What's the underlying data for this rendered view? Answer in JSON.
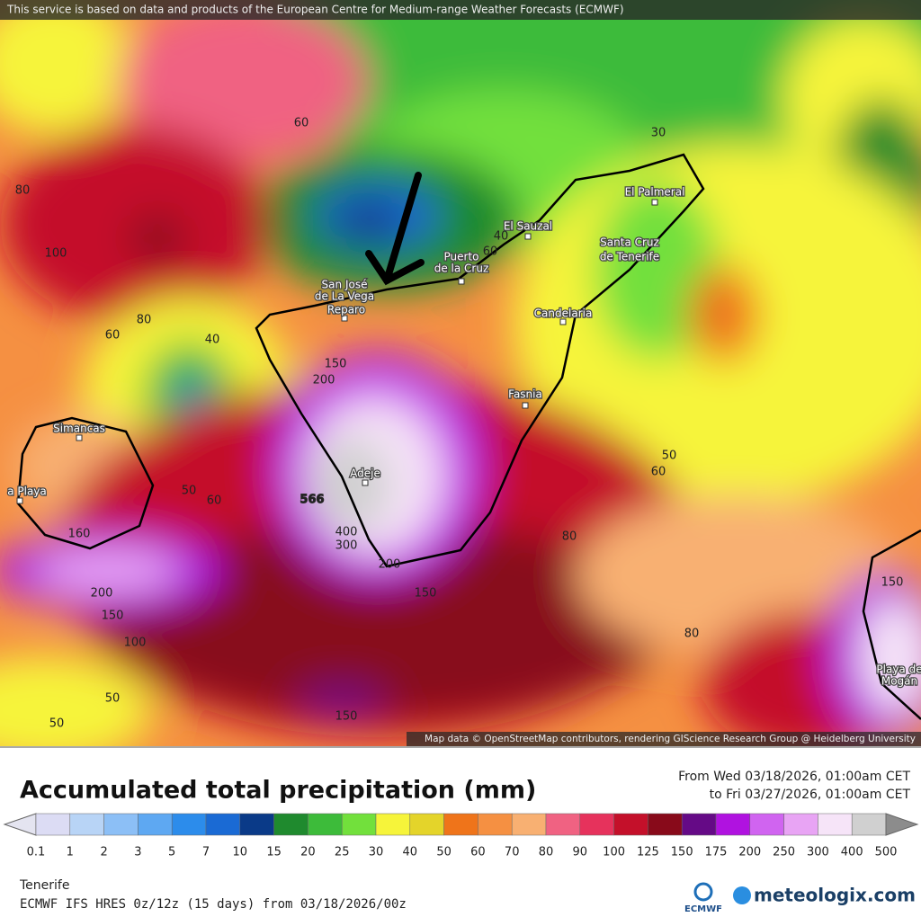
{
  "header": {
    "notice": "This service is based on data and products of the European Centre for Medium-range Weather Forecasts (ECMWF)"
  },
  "map": {
    "places": [
      {
        "lines": [
          "El Palmeral"
        ]
      },
      {
        "lines": [
          "El Sauzal"
        ]
      },
      {
        "lines": [
          "Santa Cruz",
          "de Tenerife"
        ]
      },
      {
        "lines": [
          "Puerto",
          "de la Cruz"
        ]
      },
      {
        "lines": [
          "San José",
          "de La Vega"
        ]
      },
      {
        "lines": [
          "Reparo"
        ]
      },
      {
        "lines": [
          "Candelaria"
        ]
      },
      {
        "lines": [
          "Fasnia"
        ]
      },
      {
        "lines": [
          "Adeje"
        ]
      },
      {
        "lines": [
          "Simancas"
        ]
      },
      {
        "lines": [
          "a Playa"
        ]
      },
      {
        "lines": [
          "Playa de",
          "Mogán"
        ]
      }
    ],
    "contour_labels": [
      "60",
      "30",
      "80",
      "100",
      "80",
      "60",
      "40",
      "40",
      "60",
      "150",
      "200",
      "50",
      "60",
      "566",
      "400",
      "300",
      "200",
      "150",
      "160",
      "200",
      "150",
      "100",
      "50",
      "50",
      "150",
      "80",
      "50",
      "60",
      "80",
      "150"
    ],
    "attribution": "Map data © OpenStreetMap contributors, rendering GIScience Research Group @ Heidelberg University"
  },
  "legend": {
    "title": "Accumulated total precipitation (mm)",
    "period": [
      "From Wed 03/18/2026, 01:00am CET",
      "to Fri 03/27/2026, 01:00am CET"
    ],
    "scale_labels": [
      "0.1",
      "1",
      "2",
      "3",
      "5",
      "7",
      "10",
      "15",
      "20",
      "25",
      "30",
      "40",
      "50",
      "60",
      "70",
      "80",
      "90",
      "100",
      "125",
      "150",
      "175",
      "200",
      "250",
      "300",
      "400",
      "500"
    ],
    "colors": [
      "#e4e4f0",
      "#dcdcf4",
      "#b8d4f6",
      "#8cbff6",
      "#5ea8f2",
      "#2c8ceb",
      "#1a6ad4",
      "#0a3a88",
      "#1f8a2e",
      "#3dbb3a",
      "#72e03c",
      "#f6f43a",
      "#e4d42a",
      "#ef741a",
      "#f59042",
      "#f8b072",
      "#f06282",
      "#e6325c",
      "#c4102a",
      "#880a1a",
      "#650a86",
      "#b012e0",
      "#d064f0",
      "#e8a4f4",
      "#f6e4f8",
      "#d0d0d0",
      "#8c8c8c"
    ]
  },
  "footer": {
    "region": "Tenerife",
    "model": "ECMWF IFS HRES 0z/12z (15 days) from  03/18/2026/00z",
    "logos": [
      "ECMWF",
      "meteologix.com"
    ]
  }
}
